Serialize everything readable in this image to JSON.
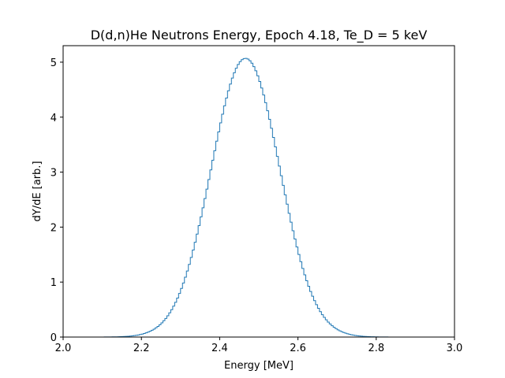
{
  "chart_data": {
    "type": "line",
    "style": "step-histogram",
    "title": "D(d,n)He Neutrons Energy, Epoch 4.18, Te_D = 5 keV",
    "xlabel": "Energy [MeV]",
    "ylabel": "dY/dE [arb.]",
    "xlim": [
      2.0,
      3.0
    ],
    "ylim": [
      0,
      5.3
    ],
    "xticks": [
      "2.0",
      "2.2",
      "2.4",
      "2.6",
      "2.8",
      "3.0"
    ],
    "yticks": [
      "0",
      "1",
      "2",
      "3",
      "4",
      "5"
    ],
    "grid": false,
    "color": "#1f77b4",
    "peak": {
      "mean": 2.466,
      "sigma": 0.0875,
      "amplitude": 5.07
    },
    "x": [
      2.05,
      2.1,
      2.15,
      2.2,
      2.25,
      2.3,
      2.35,
      2.4,
      2.45,
      2.466,
      2.5,
      2.55,
      2.6,
      2.65,
      2.7,
      2.75,
      2.8,
      2.85,
      2.9
    ],
    "values": [
      0.0,
      0.0,
      0.0,
      0.05,
      0.16,
      0.56,
      1.84,
      3.78,
      5.02,
      5.07,
      4.68,
      3.2,
      1.56,
      0.52,
      0.13,
      0.02,
      0.0,
      0.0,
      0.0
    ]
  }
}
